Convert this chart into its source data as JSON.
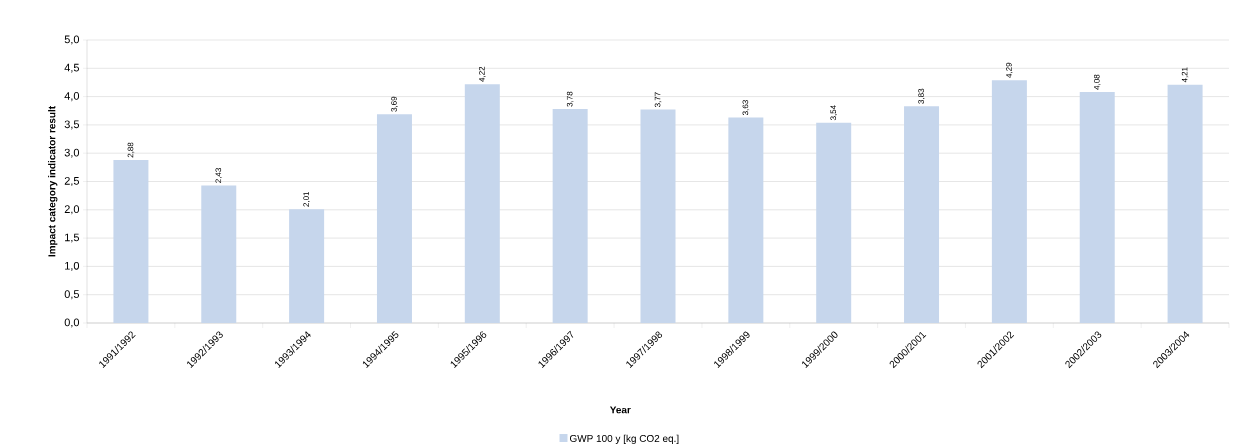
{
  "chart_data": {
    "type": "bar",
    "xlabel": "Year",
    "ylabel": "Impact category indicator result",
    "categories": [
      "1991/1992",
      "1992/1993",
      "1993/1994",
      "1994/1995",
      "1995/1996",
      "1996/1997",
      "1997/1998",
      "1998/1999",
      "1999/2000",
      "2000/2001",
      "2001/2002",
      "2002/2003",
      "2003/2004"
    ],
    "series": [
      {
        "name": "GWP 100 y [kg CO2 eq.]",
        "color": "#c6d6ec",
        "values": [
          2.88,
          2.43,
          2.01,
          3.69,
          4.22,
          3.78,
          3.77,
          3.63,
          3.54,
          3.83,
          4.29,
          4.08,
          4.21
        ],
        "value_labels": [
          "2,88",
          "2,43",
          "2,01",
          "3,69",
          "4,22",
          "3,78",
          "3,77",
          "3,63",
          "3,54",
          "3,83",
          "4,29",
          "4,08",
          "4,21"
        ]
      }
    ],
    "ylim": [
      0,
      5
    ],
    "yticks": [
      {
        "value": 0,
        "label": "0,0"
      },
      {
        "value": 0.5,
        "label": "0,5"
      },
      {
        "value": 1,
        "label": "1,0"
      },
      {
        "value": 1.5,
        "label": "1,5"
      },
      {
        "value": 2,
        "label": "2,0"
      },
      {
        "value": 2.5,
        "label": "2,5"
      },
      {
        "value": 3,
        "label": "3,0"
      },
      {
        "value": 3.5,
        "label": "3,5"
      },
      {
        "value": 4,
        "label": "4,0"
      },
      {
        "value": 4.5,
        "label": "4,5"
      },
      {
        "value": 5,
        "label": "5,0"
      }
    ],
    "grid": "y",
    "legend": "bottom"
  }
}
